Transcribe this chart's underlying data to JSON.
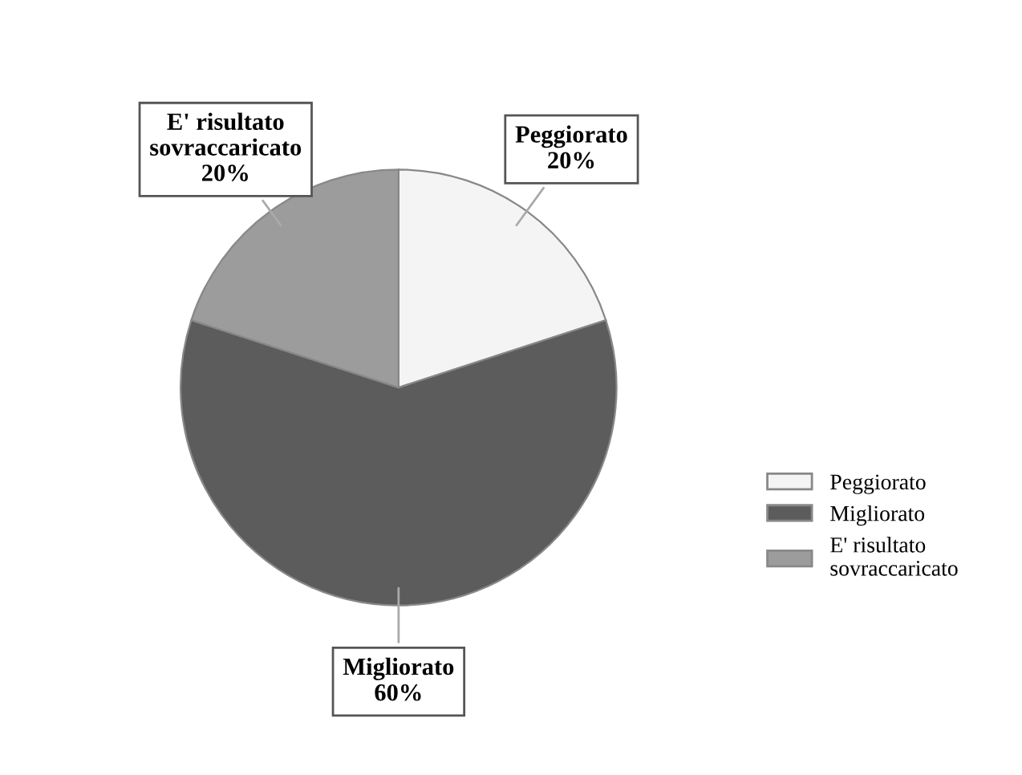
{
  "chart_data": {
    "type": "pie",
    "categories": [
      "Peggiorato",
      "Migliorato",
      "E' risultato\nsovraccaricato"
    ],
    "values": [
      20,
      60,
      20
    ],
    "colors": [
      "#f4f4f4",
      "#5c5c5c",
      "#9c9c9c"
    ],
    "value_labels": [
      "20%",
      "60%",
      "20%"
    ],
    "legend": "right"
  }
}
